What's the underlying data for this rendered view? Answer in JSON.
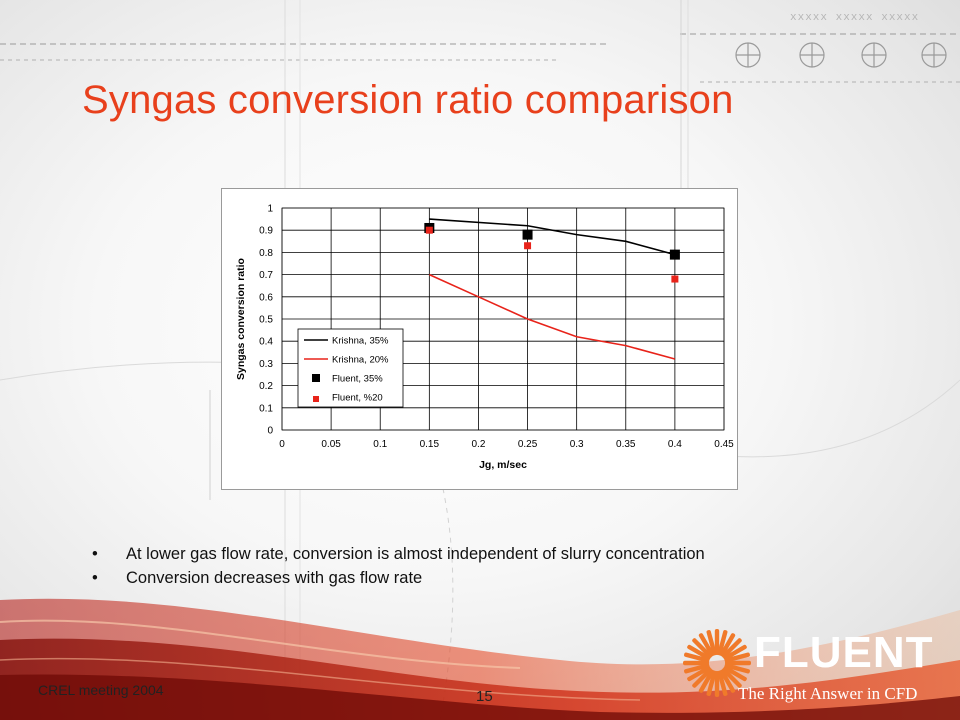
{
  "slide": {
    "title": "Syngas conversion ratio comparison",
    "header_marks": "xxxxx  xxxxx  xxxxx",
    "bullets": [
      "At lower gas flow rate, conversion is almost independent of slurry concentration",
      "Conversion decreases with gas flow rate"
    ],
    "footer_left": "CREL meeting 2004",
    "page_number": "15",
    "logo": {
      "name": "FLUENT",
      "tagline": "The Right Answer in CFD"
    }
  },
  "colors": {
    "title": "#e8401c",
    "series_black": "#000000",
    "series_red": "#e8231a",
    "logo_orange": "#f07a2a"
  },
  "chart_data": {
    "type": "line",
    "title": "",
    "xlabel": "Jg, m/sec",
    "ylabel": "Syngas conversion ratio",
    "xlim": [
      0,
      0.45
    ],
    "ylim": [
      0,
      1
    ],
    "x_ticks": [
      "0",
      "0.05",
      "0.1",
      "0.15",
      "0.2",
      "0.25",
      "0.3",
      "0.35",
      "0.4",
      "0.45"
    ],
    "y_ticks": [
      "0",
      "0.1",
      "0.2",
      "0.3",
      "0.4",
      "0.5",
      "0.6",
      "0.7",
      "0.8",
      "0.9",
      "1"
    ],
    "grid": true,
    "legend_position": "bottom-left",
    "series": [
      {
        "name": "Krishna, 35%",
        "kind": "line",
        "color": "#000000",
        "x": [
          0.15,
          0.25,
          0.3,
          0.35,
          0.4
        ],
        "y": [
          0.95,
          0.92,
          0.88,
          0.85,
          0.79
        ]
      },
      {
        "name": "Krishna, 20%",
        "kind": "line",
        "color": "#e8231a",
        "x": [
          0.15,
          0.2,
          0.25,
          0.3,
          0.35,
          0.4
        ],
        "y": [
          0.7,
          0.6,
          0.5,
          0.42,
          0.38,
          0.32
        ]
      },
      {
        "name": "Fluent, 35%",
        "kind": "marker",
        "color": "#000000",
        "x": [
          0.15,
          0.25,
          0.4
        ],
        "y": [
          0.91,
          0.88,
          0.79
        ]
      },
      {
        "name": "Fluent, %20",
        "kind": "marker",
        "color": "#e8231a",
        "x": [
          0.15,
          0.25,
          0.4
        ],
        "y": [
          0.9,
          0.83,
          0.68
        ]
      }
    ]
  }
}
